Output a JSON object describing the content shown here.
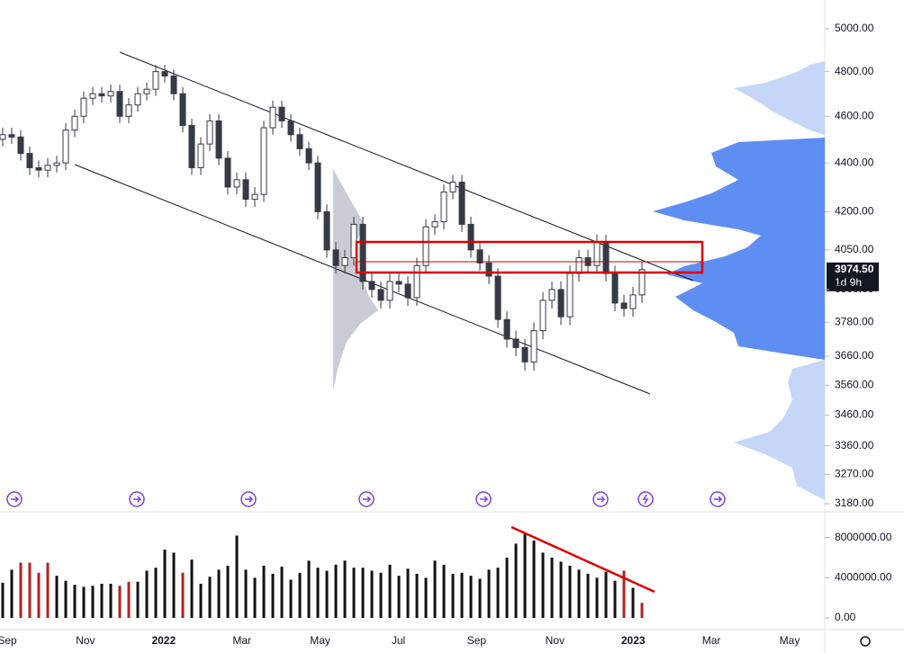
{
  "chart_data": {
    "type": "candlestick",
    "log_scale": true,
    "x_labels": [
      "Sep",
      "Nov",
      "2022",
      "Mar",
      "May",
      "Jul",
      "Sep",
      "Nov",
      "2023",
      "Mar",
      "May"
    ],
    "open": [
      4500,
      4520,
      4510,
      4440,
      4380,
      4370,
      4390,
      4400,
      4540,
      4600,
      4680,
      4700,
      4690,
      4710,
      4600,
      4650,
      4700,
      4720,
      4800,
      4780,
      4700,
      4560,
      4380,
      4480,
      4580,
      4420,
      4300,
      4330,
      4250,
      4270,
      4550,
      4640,
      4580,
      4520,
      4460,
      4400,
      4200,
      4050,
      3990,
      4020,
      4150,
      3930,
      3900,
      3860,
      3930,
      3920,
      3870,
      3990,
      4140,
      4160,
      4280,
      4320,
      4150,
      4050,
      4000,
      3950,
      3790,
      3720,
      3690,
      3640,
      3750,
      3860,
      3900,
      3800,
      3960,
      4020,
      3990,
      4080,
      3960,
      3850,
      3830,
      3880
    ],
    "high": [
      4550,
      4550,
      4540,
      4470,
      4410,
      4420,
      4430,
      4570,
      4630,
      4710,
      4730,
      4730,
      4740,
      4740,
      4680,
      4730,
      4750,
      4830,
      4830,
      4810,
      4730,
      4590,
      4510,
      4610,
      4610,
      4450,
      4360,
      4360,
      4300,
      4580,
      4670,
      4670,
      4610,
      4550,
      4490,
      4430,
      4230,
      4080,
      4050,
      4180,
      4180,
      3960,
      3930,
      3960,
      3960,
      3950,
      4020,
      4170,
      4190,
      4310,
      4350,
      4350,
      4180,
      4080,
      4030,
      3980,
      3820,
      3750,
      3720,
      3780,
      3890,
      3930,
      3930,
      3990,
      4050,
      4050,
      4110,
      4110,
      3990,
      3880,
      3910,
      4005
    ],
    "low": [
      4470,
      4480,
      4410,
      4350,
      4340,
      4340,
      4360,
      4370,
      4510,
      4570,
      4650,
      4660,
      4660,
      4570,
      4570,
      4620,
      4670,
      4690,
      4750,
      4670,
      4530,
      4350,
      4350,
      4450,
      4390,
      4270,
      4270,
      4220,
      4220,
      4240,
      4520,
      4550,
      4490,
      4430,
      4370,
      4170,
      4020,
      3960,
      3960,
      3990,
      3900,
      3870,
      3830,
      3830,
      3890,
      3840,
      3840,
      3960,
      4110,
      4130,
      4250,
      4120,
      4020,
      3970,
      3920,
      3760,
      3690,
      3660,
      3610,
      3610,
      3720,
      3830,
      3770,
      3770,
      3930,
      3960,
      3960,
      3930,
      3820,
      3800,
      3800,
      3850
    ],
    "close": [
      4520,
      4510,
      4440,
      4380,
      4370,
      4390,
      4400,
      4540,
      4600,
      4680,
      4700,
      4690,
      4710,
      4600,
      4650,
      4700,
      4720,
      4800,
      4780,
      4700,
      4560,
      4380,
      4480,
      4580,
      4420,
      4300,
      4330,
      4250,
      4270,
      4550,
      4640,
      4580,
      4520,
      4460,
      4400,
      4200,
      4050,
      3990,
      4020,
      4150,
      3930,
      3900,
      3860,
      3930,
      3920,
      3870,
      3990,
      4140,
      4160,
      4280,
      4320,
      4150,
      4050,
      4000,
      3950,
      3790,
      3720,
      3690,
      3640,
      3750,
      3860,
      3900,
      3800,
      3960,
      4020,
      3990,
      4080,
      3960,
      3850,
      3830,
      3880,
      3974.5
    ],
    "up_color": "#ffffff",
    "down_color": "#363a45",
    "ylim": [
      3180,
      5000
    ],
    "yticks": [
      {
        "value": 5000,
        "label": "5000.00"
      },
      {
        "value": 4800,
        "label": "4800.00"
      },
      {
        "value": 4600,
        "label": "4600.00"
      },
      {
        "value": 4400,
        "label": "4400.00"
      },
      {
        "value": 4200,
        "label": "4200.00"
      },
      {
        "value": 4050,
        "label": "4050.00"
      },
      {
        "value": 3900,
        "label": "3900.00"
      },
      {
        "value": 3780,
        "label": "3780.00"
      },
      {
        "value": 3660,
        "label": "3660.00"
      },
      {
        "value": 3560,
        "label": "3560.00"
      },
      {
        "value": 3460,
        "label": "3460.00"
      },
      {
        "value": 3360,
        "label": "3360.00"
      },
      {
        "value": 3270,
        "label": "3270.00"
      },
      {
        "value": 3180,
        "label": "3180.00"
      }
    ],
    "last_price": 3974.5,
    "last_price_label": "3974.50",
    "countdown": "1d 9h",
    "volume": {
      "values": [
        3500000,
        4800000,
        5500000,
        5500000,
        4500000,
        5500000,
        4200000,
        3700000,
        3300000,
        3100000,
        3200000,
        3400000,
        3400000,
        3200000,
        3600000,
        3600000,
        4700000,
        5000000,
        6800000,
        6500000,
        4500000,
        5800000,
        3400000,
        4100000,
        4800000,
        5200000,
        8200000,
        4800000,
        4000000,
        5200000,
        4400000,
        5100000,
        3800000,
        4500000,
        5700000,
        5000000,
        4700000,
        5300000,
        5700000,
        5000000,
        5000000,
        4700000,
        4500000,
        5300000,
        4200000,
        4900000,
        4400000,
        4000000,
        5700000,
        5300000,
        4400000,
        4500000,
        4200000,
        3900000,
        4800000,
        5000000,
        6000000,
        7400000,
        8500000,
        7700000,
        6500000,
        6000000,
        5600000,
        5200000,
        4800000,
        4400000,
        4000000,
        4600000,
        3700000,
        4700000,
        3000000,
        1500000
      ],
      "colors": [
        "#111111",
        "#111111",
        "#b22222",
        "#b22222",
        "#b22222",
        "#b22222",
        "#111111",
        "#111111",
        "#111111",
        "#111111",
        "#111111",
        "#111111",
        "#111111",
        "#b22222",
        "#b22222",
        "#111111",
        "#111111",
        "#111111",
        "#111111",
        "#111111",
        "#b22222",
        "#111111",
        "#111111",
        "#111111",
        "#111111",
        "#111111",
        "#111111",
        "#111111",
        "#111111",
        "#111111",
        "#111111",
        "#111111",
        "#111111",
        "#111111",
        "#111111",
        "#111111",
        "#111111",
        "#111111",
        "#111111",
        "#111111",
        "#111111",
        "#111111",
        "#111111",
        "#111111",
        "#111111",
        "#111111",
        "#111111",
        "#111111",
        "#111111",
        "#111111",
        "#111111",
        "#111111",
        "#111111",
        "#111111",
        "#111111",
        "#111111",
        "#111111",
        "#111111",
        "#111111",
        "#111111",
        "#111111",
        "#111111",
        "#111111",
        "#111111",
        "#111111",
        "#111111",
        "#111111",
        "#111111",
        "#111111",
        "#b22222",
        "#111111",
        "#b22222"
      ],
      "ylim": [
        0,
        10300000
      ],
      "yticks": [
        {
          "value": 0,
          "label": "0.00"
        },
        {
          "value": 4000000,
          "label": "4000000.00"
        },
        {
          "value": 8000000,
          "label": "8000000.00"
        }
      ]
    }
  }
}
